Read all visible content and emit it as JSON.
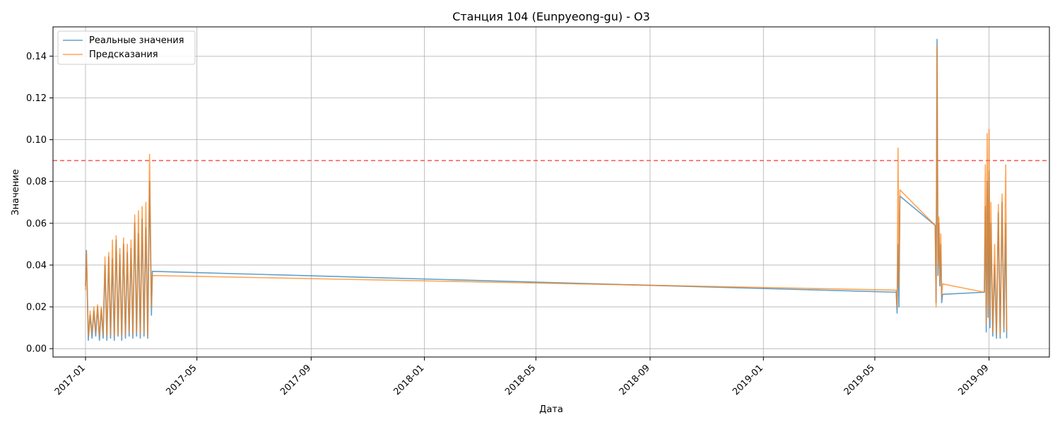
{
  "chart_data": {
    "type": "line",
    "title": "Станция 104 (Eunpyeong-gu) - O3",
    "xlabel": "Дата",
    "ylabel": "Значение",
    "x_axis": "date",
    "xlim": [
      "2016-11-27",
      "2019-11-05"
    ],
    "ylim": [
      -0.004,
      0.154
    ],
    "x_ticks": [
      "2017-01-01",
      "2017-05-01",
      "2017-09-01",
      "2018-01-01",
      "2018-05-01",
      "2018-09-01",
      "2019-01-01",
      "2019-05-01",
      "2019-09-01"
    ],
    "x_tick_labels": [
      "2017-01",
      "2017-05",
      "2017-09",
      "2018-01",
      "2018-05",
      "2018-09",
      "2019-01",
      "2019-05",
      "2019-09"
    ],
    "y_ticks": [
      0.0,
      0.02,
      0.04,
      0.06,
      0.08,
      0.1,
      0.12,
      0.14
    ],
    "y_tick_labels": [
      "0.00",
      "0.02",
      "0.04",
      "0.06",
      "0.08",
      "0.10",
      "0.12",
      "0.14"
    ],
    "grid": true,
    "legend_position": "top-left",
    "threshold": {
      "value": 0.09,
      "color": "#ff5555",
      "style": "dashed"
    },
    "series": [
      {
        "name": "Реальные значения",
        "color": "#1f77b4",
        "points": [
          [
            "2017-01-01",
            0.03
          ],
          [
            "2017-01-02",
            0.047
          ],
          [
            "2017-01-04",
            0.004
          ],
          [
            "2017-01-06",
            0.016
          ],
          [
            "2017-01-08",
            0.005
          ],
          [
            "2017-01-10",
            0.018
          ],
          [
            "2017-01-12",
            0.006
          ],
          [
            "2017-01-14",
            0.02
          ],
          [
            "2017-01-16",
            0.004
          ],
          [
            "2017-01-18",
            0.019
          ],
          [
            "2017-01-20",
            0.005
          ],
          [
            "2017-01-22",
            0.04
          ],
          [
            "2017-01-24",
            0.004
          ],
          [
            "2017-01-26",
            0.044
          ],
          [
            "2017-01-28",
            0.005
          ],
          [
            "2017-01-30",
            0.043
          ],
          [
            "2017-02-01",
            0.004
          ],
          [
            "2017-02-03",
            0.052
          ],
          [
            "2017-02-05",
            0.006
          ],
          [
            "2017-02-07",
            0.045
          ],
          [
            "2017-02-09",
            0.004
          ],
          [
            "2017-02-11",
            0.05
          ],
          [
            "2017-02-13",
            0.005
          ],
          [
            "2017-02-15",
            0.046
          ],
          [
            "2017-02-17",
            0.006
          ],
          [
            "2017-02-19",
            0.048
          ],
          [
            "2017-02-21",
            0.005
          ],
          [
            "2017-02-23",
            0.06
          ],
          [
            "2017-02-25",
            0.006
          ],
          [
            "2017-02-27",
            0.055
          ],
          [
            "2017-03-01",
            0.005
          ],
          [
            "2017-03-03",
            0.062
          ],
          [
            "2017-03-05",
            0.006
          ],
          [
            "2017-03-07",
            0.058
          ],
          [
            "2017-03-09",
            0.005
          ],
          [
            "2017-03-11",
            0.08
          ],
          [
            "2017-03-13",
            0.016
          ],
          [
            "2017-03-14",
            0.037
          ],
          [
            "2019-05-24",
            0.027
          ],
          [
            "2019-05-25",
            0.017
          ],
          [
            "2019-05-26",
            0.05
          ],
          [
            "2019-05-27",
            0.02
          ],
          [
            "2019-05-28",
            0.073
          ],
          [
            "2019-07-05",
            0.059
          ],
          [
            "2019-07-06",
            0.022
          ],
          [
            "2019-07-07",
            0.148
          ],
          [
            "2019-07-08",
            0.035
          ],
          [
            "2019-07-09",
            0.06
          ],
          [
            "2019-07-10",
            0.03
          ],
          [
            "2019-07-11",
            0.05
          ],
          [
            "2019-07-12",
            0.022
          ],
          [
            "2019-07-13",
            0.026
          ],
          [
            "2019-08-27",
            0.027
          ],
          [
            "2019-08-28",
            0.068
          ],
          [
            "2019-08-29",
            0.008
          ],
          [
            "2019-08-30",
            0.08
          ],
          [
            "2019-08-31",
            0.015
          ],
          [
            "2019-09-01",
            0.085
          ],
          [
            "2019-09-02",
            0.01
          ],
          [
            "2019-09-03",
            0.06
          ],
          [
            "2019-09-05",
            0.006
          ],
          [
            "2019-09-07",
            0.04
          ],
          [
            "2019-09-09",
            0.005
          ],
          [
            "2019-09-11",
            0.065
          ],
          [
            "2019-09-13",
            0.005
          ],
          [
            "2019-09-15",
            0.07
          ],
          [
            "2019-09-17",
            0.008
          ],
          [
            "2019-09-19",
            0.06
          ],
          [
            "2019-09-20",
            0.005
          ]
        ]
      },
      {
        "name": "Предсказания",
        "color": "#ff7f0e",
        "points": [
          [
            "2017-01-01",
            0.028
          ],
          [
            "2017-01-02",
            0.046
          ],
          [
            "2017-01-04",
            0.006
          ],
          [
            "2017-01-06",
            0.018
          ],
          [
            "2017-01-08",
            0.007
          ],
          [
            "2017-01-10",
            0.02
          ],
          [
            "2017-01-12",
            0.008
          ],
          [
            "2017-01-14",
            0.021
          ],
          [
            "2017-01-16",
            0.006
          ],
          [
            "2017-01-18",
            0.02
          ],
          [
            "2017-01-20",
            0.007
          ],
          [
            "2017-01-22",
            0.044
          ],
          [
            "2017-01-24",
            0.006
          ],
          [
            "2017-01-26",
            0.046
          ],
          [
            "2017-01-28",
            0.007
          ],
          [
            "2017-01-30",
            0.052
          ],
          [
            "2017-02-01",
            0.006
          ],
          [
            "2017-02-03",
            0.054
          ],
          [
            "2017-02-05",
            0.007
          ],
          [
            "2017-02-07",
            0.048
          ],
          [
            "2017-02-09",
            0.006
          ],
          [
            "2017-02-11",
            0.053
          ],
          [
            "2017-02-13",
            0.007
          ],
          [
            "2017-02-15",
            0.05
          ],
          [
            "2017-02-17",
            0.008
          ],
          [
            "2017-02-19",
            0.052
          ],
          [
            "2017-02-21",
            0.007
          ],
          [
            "2017-02-23",
            0.064
          ],
          [
            "2017-02-25",
            0.008
          ],
          [
            "2017-02-27",
            0.066
          ],
          [
            "2017-03-01",
            0.007
          ],
          [
            "2017-03-03",
            0.068
          ],
          [
            "2017-03-05",
            0.008
          ],
          [
            "2017-03-07",
            0.07
          ],
          [
            "2017-03-09",
            0.006
          ],
          [
            "2017-03-11",
            0.093
          ],
          [
            "2017-03-13",
            0.02
          ],
          [
            "2017-03-14",
            0.035
          ],
          [
            "2019-05-24",
            0.028
          ],
          [
            "2019-05-25",
            0.02
          ],
          [
            "2019-05-26",
            0.096
          ],
          [
            "2019-05-27",
            0.03
          ],
          [
            "2019-05-28",
            0.076
          ],
          [
            "2019-07-05",
            0.059
          ],
          [
            "2019-07-06",
            0.02
          ],
          [
            "2019-07-07",
            0.145
          ],
          [
            "2019-07-08",
            0.04
          ],
          [
            "2019-07-09",
            0.063
          ],
          [
            "2019-07-10",
            0.032
          ],
          [
            "2019-07-11",
            0.055
          ],
          [
            "2019-07-12",
            0.025
          ],
          [
            "2019-07-13",
            0.031
          ],
          [
            "2019-08-27",
            0.027
          ],
          [
            "2019-08-28",
            0.088
          ],
          [
            "2019-08-29",
            0.012
          ],
          [
            "2019-08-30",
            0.103
          ],
          [
            "2019-08-31",
            0.02
          ],
          [
            "2019-09-01",
            0.105
          ],
          [
            "2019-09-02",
            0.014
          ],
          [
            "2019-09-03",
            0.07
          ],
          [
            "2019-09-05",
            0.008
          ],
          [
            "2019-09-07",
            0.05
          ],
          [
            "2019-09-09",
            0.007
          ],
          [
            "2019-09-11",
            0.069
          ],
          [
            "2019-09-13",
            0.007
          ],
          [
            "2019-09-15",
            0.074
          ],
          [
            "2019-09-17",
            0.01
          ],
          [
            "2019-09-19",
            0.088
          ],
          [
            "2019-09-20",
            0.008
          ]
        ]
      }
    ]
  }
}
